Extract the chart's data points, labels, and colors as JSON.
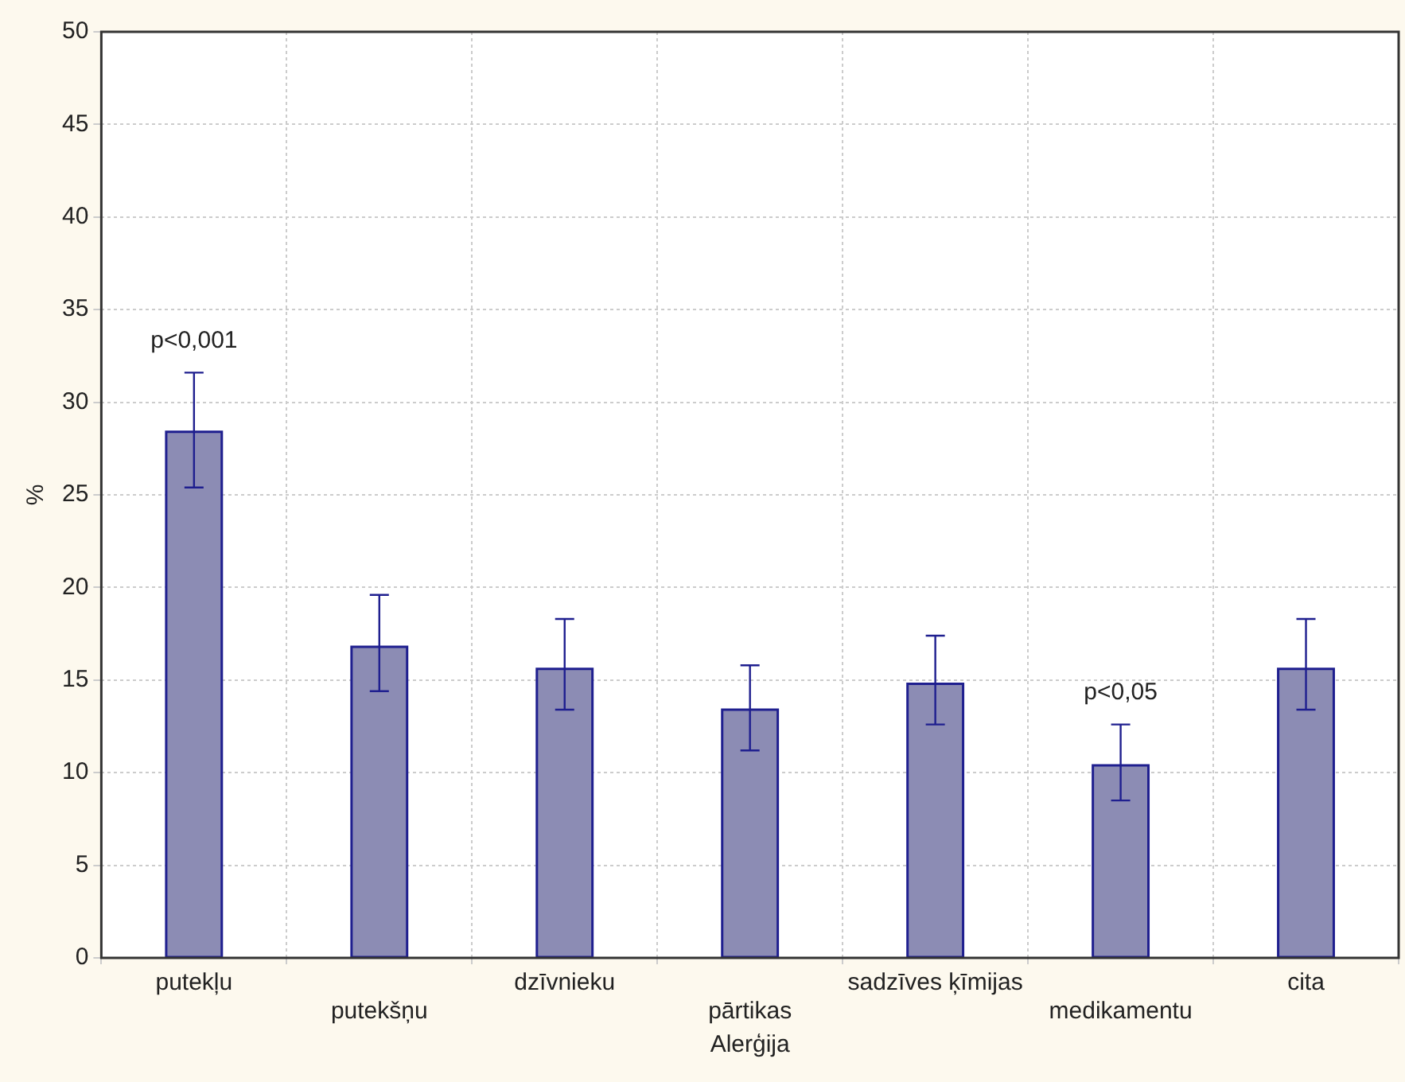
{
  "chart_data": {
    "type": "bar",
    "xlabel": "Alerģija",
    "ylabel": "%",
    "categories": [
      "putekļu",
      "putekšņu",
      "dzīvnieku",
      "pārtikas",
      "sadzīves ķīmijas",
      "medikamentu",
      "cita"
    ],
    "values": [
      28.4,
      16.8,
      15.6,
      13.4,
      14.8,
      10.4,
      15.6
    ],
    "errors": [
      [
        25.4,
        31.6
      ],
      [
        14.4,
        19.6
      ],
      [
        13.4,
        18.3
      ],
      [
        11.2,
        15.8
      ],
      [
        12.6,
        17.4
      ],
      [
        8.5,
        12.6
      ],
      [
        13.4,
        18.3
      ]
    ],
    "color": "#8c8cb4",
    "ylim": [
      0,
      50
    ],
    "yticks": [
      0,
      5,
      10,
      15,
      20,
      25,
      30,
      35,
      40,
      45,
      50
    ],
    "grid": true,
    "annotations": [
      {
        "text": "p<0,001",
        "x": "putekļu",
        "y": 31.6
      },
      {
        "text": "p<0,05",
        "x": "medikamentu",
        "y": 12.6
      }
    ]
  }
}
